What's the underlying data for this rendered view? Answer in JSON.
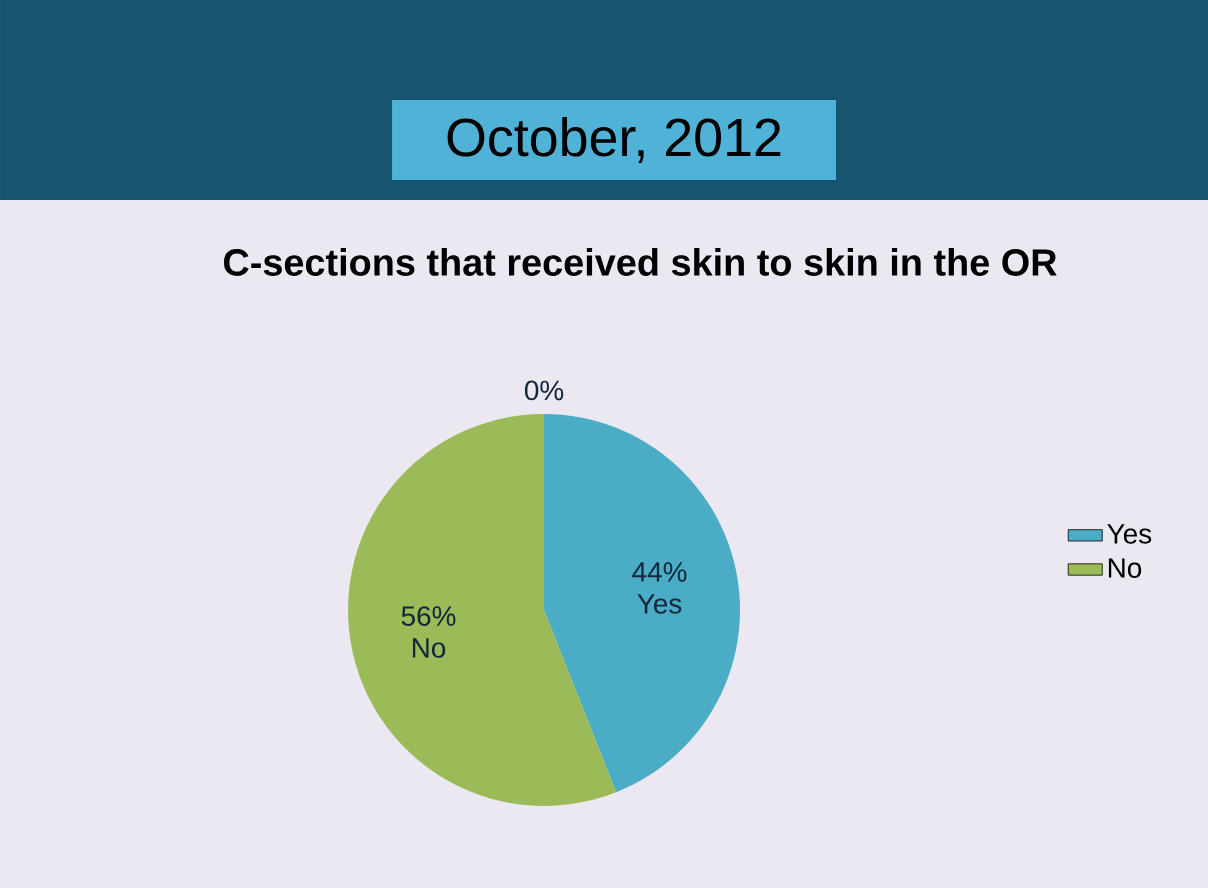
{
  "chart_data": {
    "type": "pie",
    "title": "October, 2012",
    "subtitle": "C-sections that received skin to skin in the OR",
    "categories": [
      "Yes",
      "No",
      null
    ],
    "values": [
      44,
      56,
      0
    ],
    "value_labels": [
      "44%",
      "56%",
      "0%"
    ],
    "colors": [
      "#4bacc6",
      "#9bbb59",
      "#4f81bd"
    ],
    "legend": "right"
  }
}
